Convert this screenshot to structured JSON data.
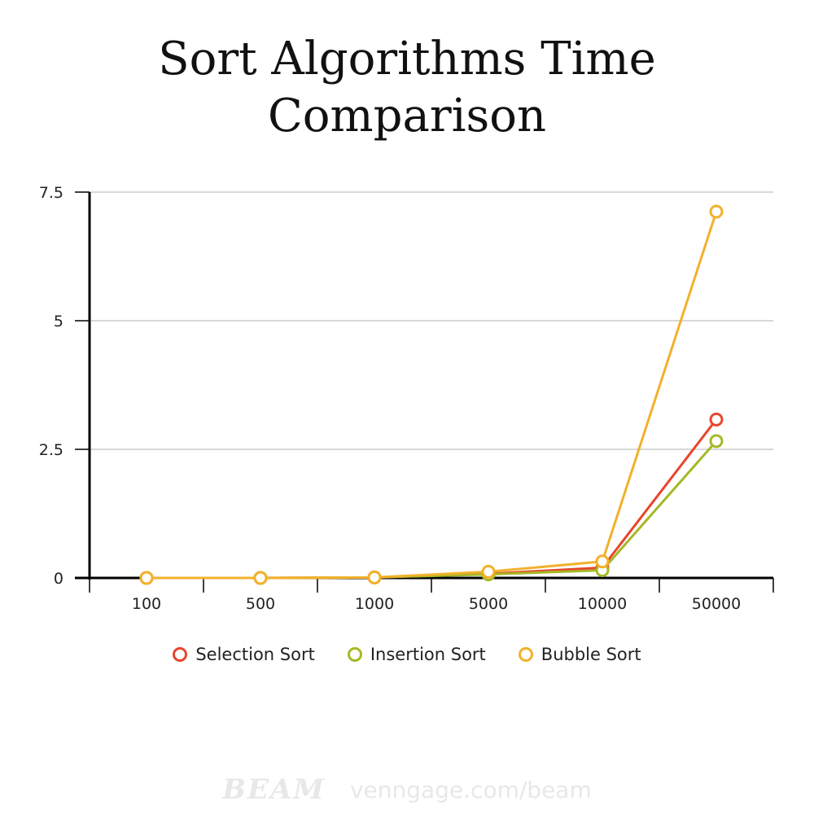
{
  "chart_data": {
    "type": "line",
    "title": "Sort Algorithms Time Comparison",
    "title_lines": [
      "Sort Algorithms Time",
      "Comparison"
    ],
    "xlabel": "",
    "ylabel": "",
    "categories": [
      "100",
      "500",
      "1000",
      "5000",
      "10000",
      "50000"
    ],
    "ylim": [
      0,
      7.5
    ],
    "yticks": [
      "0",
      "2.5",
      "5",
      "7.5"
    ],
    "grid": true,
    "legend_position": "bottom",
    "series": [
      {
        "name": "Selection Sort",
        "color": "#e8452c",
        "values": [
          0,
          0,
          0.01,
          0.08,
          0.2,
          3.08
        ]
      },
      {
        "name": "Insertion Sort",
        "color": "#a6b824",
        "values": [
          0,
          0,
          0.01,
          0.07,
          0.15,
          2.66
        ]
      },
      {
        "name": "Bubble Sort",
        "color": "#f2b12b",
        "values": [
          0,
          0,
          0.01,
          0.12,
          0.32,
          7.12
        ]
      }
    ]
  },
  "footer": {
    "logo": "BEAM",
    "url": "venngage.com/beam"
  }
}
